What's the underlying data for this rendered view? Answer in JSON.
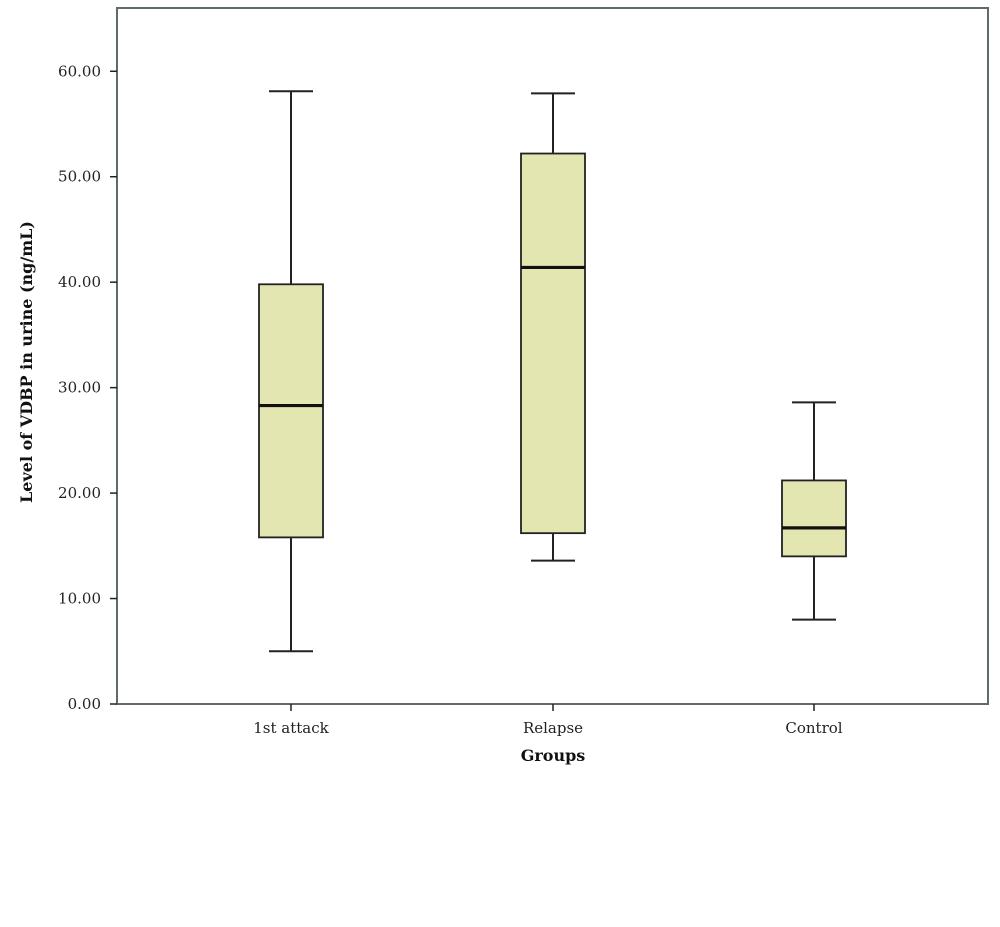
{
  "chart_data": {
    "type": "box",
    "xlabel": "Groups",
    "ylabel": "Level of VDBP in urine (ng/mL)",
    "ylim": [
      0,
      66
    ],
    "yticks": [
      "0.00",
      "10.00",
      "20.00",
      "30.00",
      "40.00",
      "50.00",
      "60.00"
    ],
    "yticks_values": [
      0,
      10,
      20,
      30,
      40,
      50,
      60
    ],
    "categories": [
      "1st attack",
      "Relapse",
      "Control"
    ],
    "boxes": [
      {
        "name": "1st attack",
        "min": 5.0,
        "q1": 15.8,
        "median": 28.3,
        "q3": 39.8,
        "max": 58.1
      },
      {
        "name": "Relapse",
        "min": 13.6,
        "q1": 16.2,
        "median": 41.4,
        "q3": 52.2,
        "max": 57.9
      },
      {
        "name": "Control",
        "min": 8.0,
        "q1": 14.0,
        "median": 16.7,
        "q3": 21.2,
        "max": 28.6
      }
    ],
    "box_color": "#e4e6b1",
    "grid": false
  }
}
